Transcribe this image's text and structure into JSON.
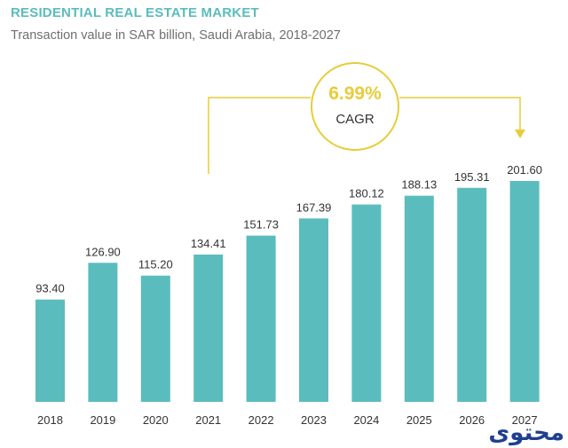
{
  "header": {
    "title": "RESIDENTIAL REAL ESTATE MARKET",
    "subtitle": "Transaction value in SAR billion, Saudi Arabia, 2018-2027"
  },
  "cagr": {
    "value": "6.99%",
    "label": "CAGR"
  },
  "logo": {
    "text": "محتوى"
  },
  "colors": {
    "bar": "#5BBCBD",
    "accent": "#E8CC3A",
    "title": "#5BBCBD"
  },
  "chart_data": {
    "type": "bar",
    "categories": [
      "2018",
      "2019",
      "2020",
      "2021",
      "2022",
      "2023",
      "2024",
      "2025",
      "2026",
      "2027"
    ],
    "values": [
      93.4,
      126.9,
      115.2,
      134.41,
      151.73,
      167.39,
      180.12,
      188.13,
      195.31,
      201.6
    ],
    "value_labels": [
      "93.40",
      "126.90",
      "115.20",
      "134.41",
      "151.73",
      "167.39",
      "180.12",
      "188.13",
      "195.31",
      "201.60"
    ],
    "title": "RESIDENTIAL REAL ESTATE MARKET",
    "subtitle": "Transaction value in SAR billion, Saudi Arabia, 2018-2027",
    "ylim": [
      0,
      201.6
    ],
    "grid": false,
    "legend": "none"
  }
}
